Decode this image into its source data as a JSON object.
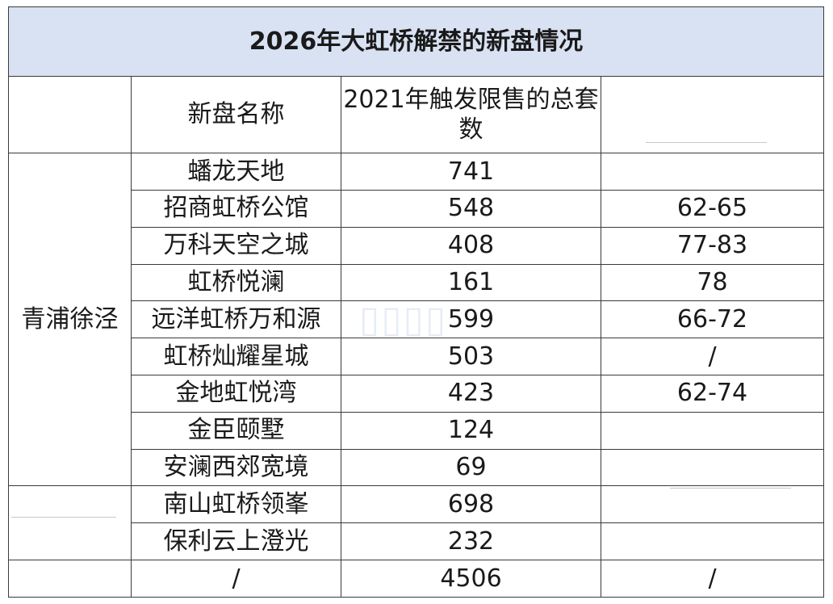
{
  "title": "2026年大虹桥解禁的新盘情况",
  "headers": {
    "col_region": "",
    "col_name": "新盘名称",
    "col_count": "2021年触发限售的总套数",
    "col_extra": ""
  },
  "rows": [
    {
      "region": "青浦徐泾",
      "name": "蟠龙天地",
      "count": "741",
      "extra": ""
    },
    {
      "region": "",
      "name": "招商虹桥公馆",
      "count": "548",
      "extra": "62-65"
    },
    {
      "region": "",
      "name": "万科天空之城",
      "count": "408",
      "extra": "77-83"
    },
    {
      "region": "",
      "name": "虹桥悦澜",
      "count": "161",
      "extra": "78"
    },
    {
      "region": "",
      "name": "远洋虹桥万和源",
      "count": "599",
      "extra": "66-72"
    },
    {
      "region": "",
      "name": "虹桥灿耀星城",
      "count": "503",
      "extra": "/"
    },
    {
      "region": "",
      "name": "金地虹悦湾",
      "count": "423",
      "extra": "62-74"
    },
    {
      "region": "",
      "name": "金臣颐墅",
      "count": "124",
      "extra": ""
    },
    {
      "region": "",
      "name": "安澜西郊宽境",
      "count": "69",
      "extra": ""
    },
    {
      "region": "",
      "name": "南山虹桥领峯",
      "count": "698",
      "extra": ""
    },
    {
      "region": "",
      "name": "保利云上澄光",
      "count": "232",
      "extra": ""
    },
    {
      "region": "",
      "name": "/",
      "count": "4506",
      "extra": "/"
    }
  ]
}
